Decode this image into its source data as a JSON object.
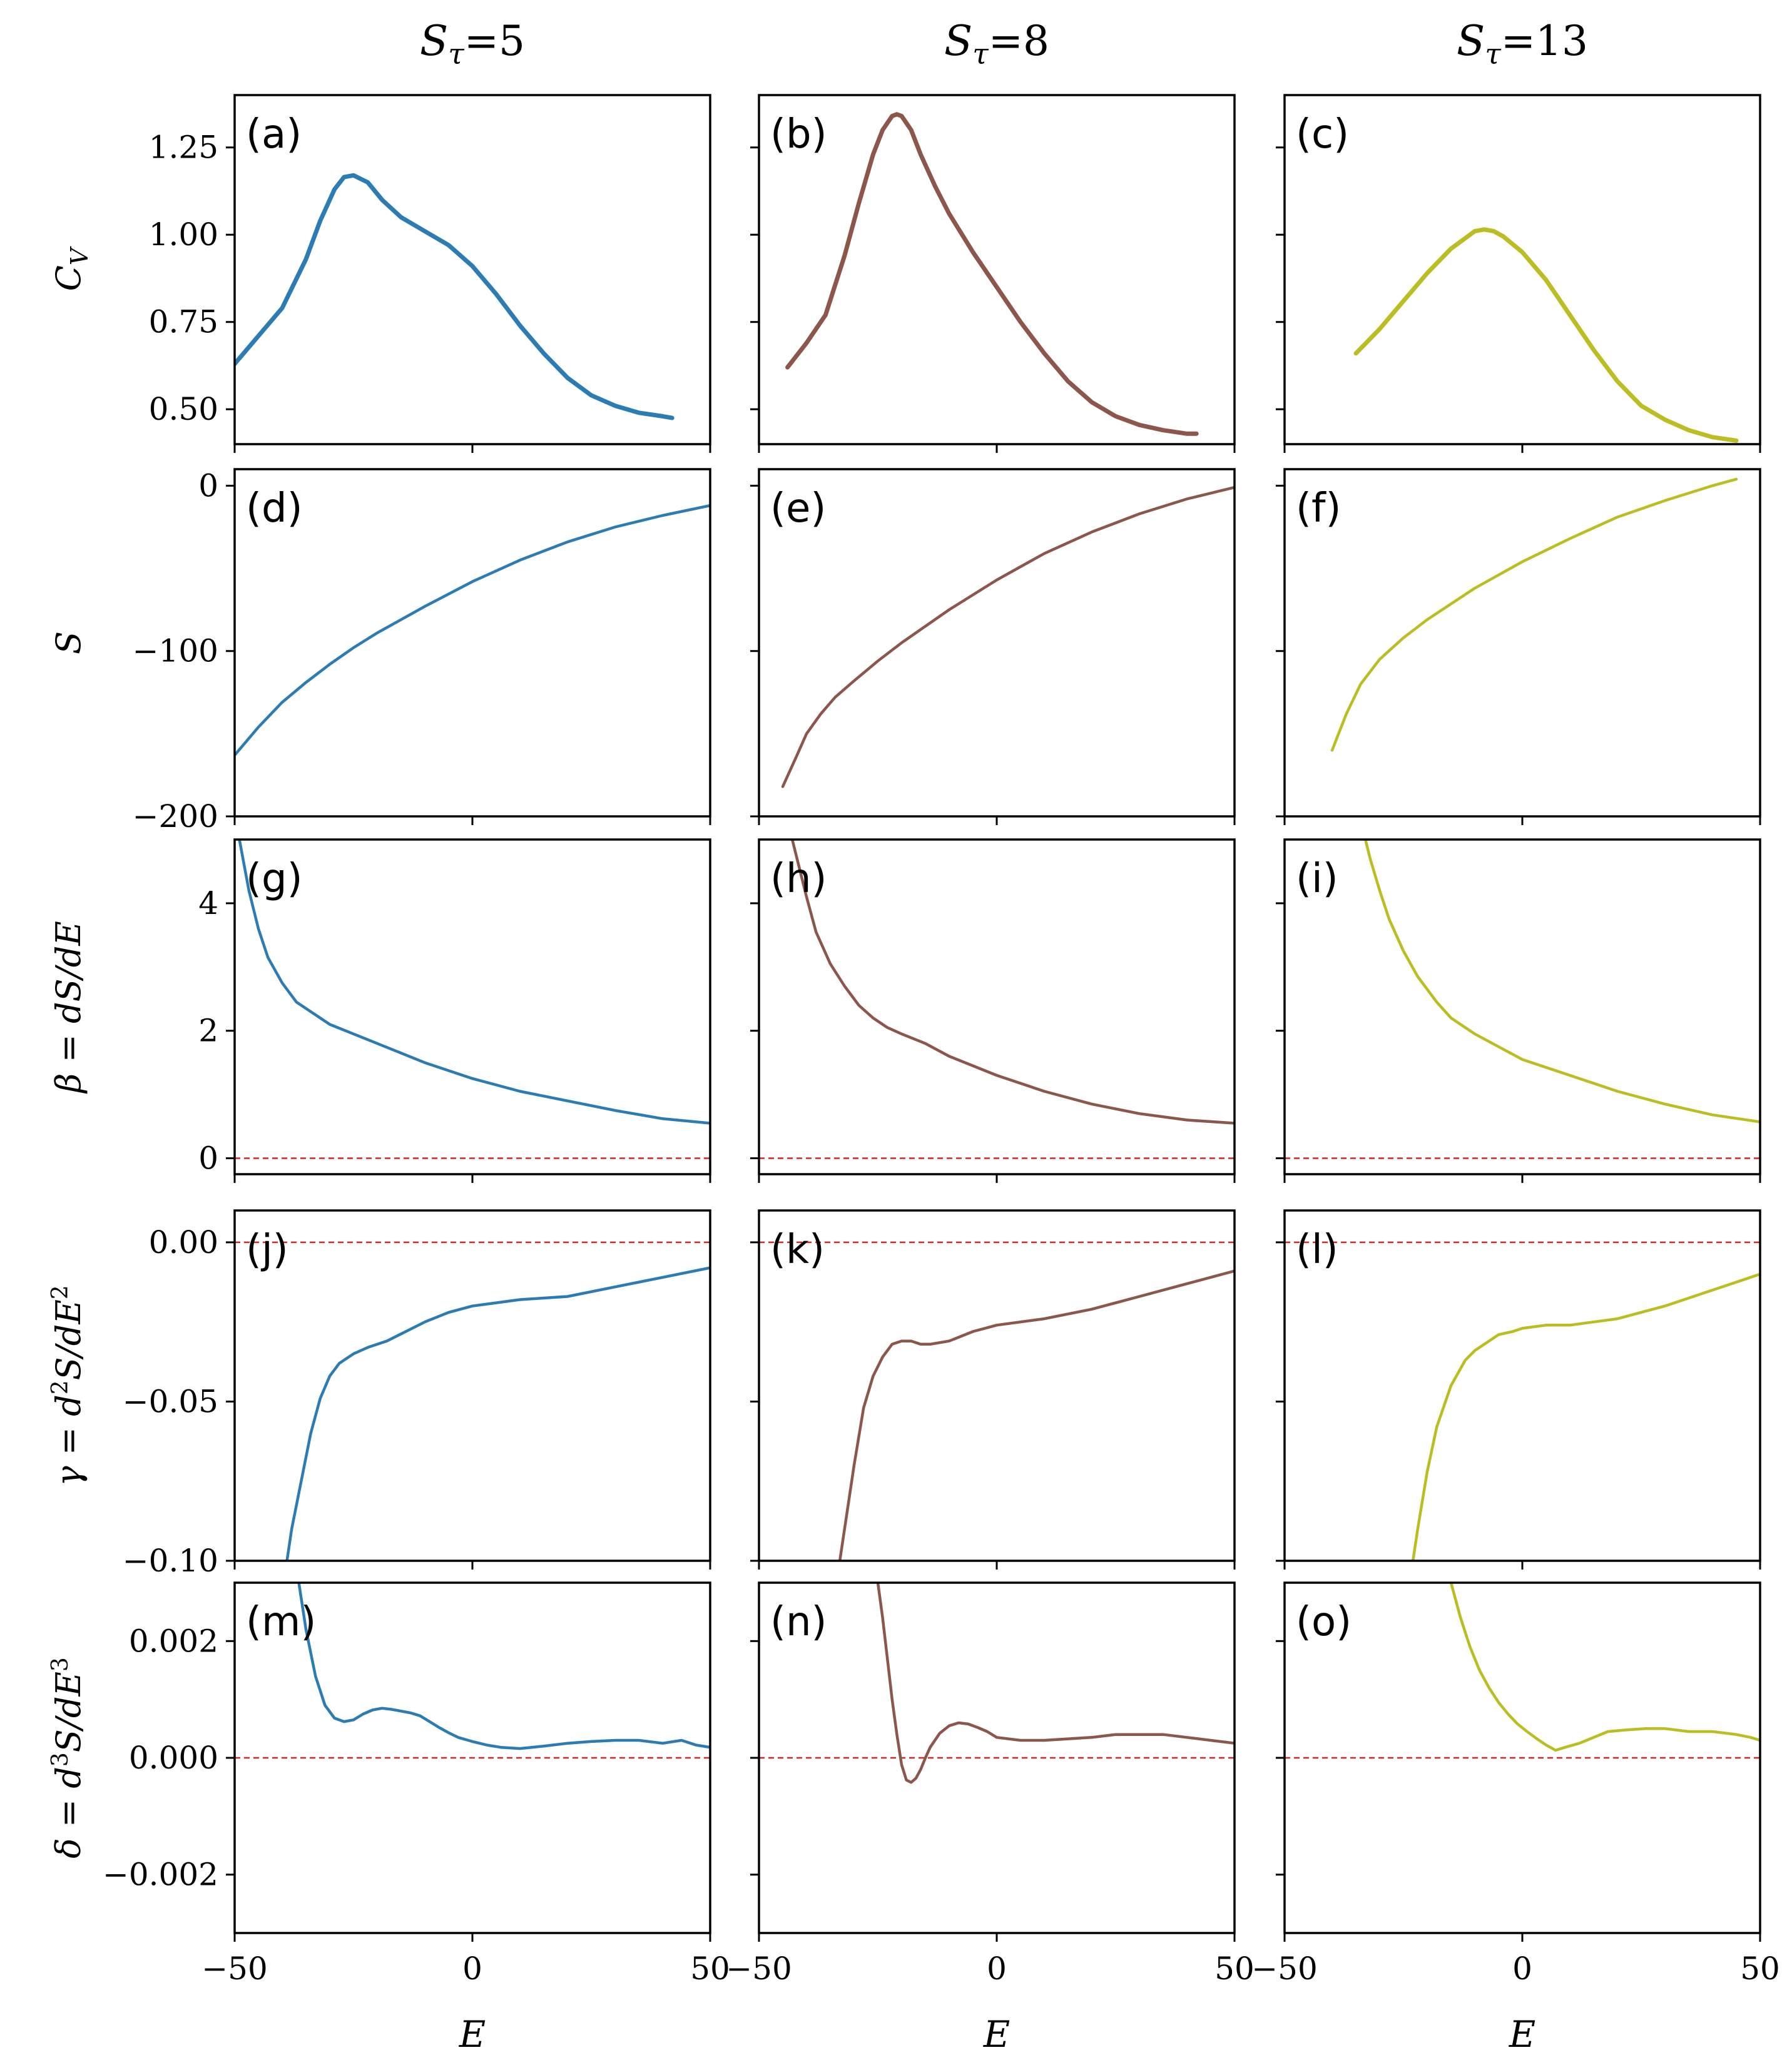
{
  "chart_data": {
    "type": "line",
    "layout": "5x3 grid of line plots",
    "colors": {
      "5": "#2b7bb4",
      "8": "#8c564b",
      "13": "#bcbd22",
      "zero_line": "#d62728"
    },
    "columns": [
      {
        "title": "S_τ=5",
        "title_main": "S",
        "title_sub": "τ",
        "title_rest": "=5",
        "color_key": "5"
      },
      {
        "title": "S_τ=8",
        "title_main": "S",
        "title_sub": "τ",
        "title_rest": "=8",
        "color_key": "8"
      },
      {
        "title": "S_τ=13",
        "title_main": "S",
        "title_sub": "τ",
        "title_rest": "=13",
        "color_key": "13"
      }
    ],
    "xaxis": {
      "label": "E",
      "xlim": [
        -50,
        50
      ],
      "ticks": [
        -50,
        0,
        50
      ],
      "tick_labels": [
        "−50",
        "0",
        "50"
      ]
    },
    "rows": [
      {
        "key": "cv",
        "ylabel": "C_V",
        "ylabel_main": "C",
        "ylabel_sub": "V",
        "ylim": [
          0.4,
          1.4
        ],
        "yticks": [
          0.5,
          0.75,
          1.0,
          1.25
        ],
        "ytick_labels": [
          "0.50",
          "0.75",
          "1.00",
          "1.25"
        ],
        "zero_line": false,
        "panels": [
          {
            "letter": "(a)",
            "x": [
              -50,
              -45,
              -40,
              -35,
              -32,
              -29,
              -27,
              -25,
              -22,
              -19,
              -15,
              -10,
              -5,
              0,
              5,
              10,
              15,
              20,
              25,
              30,
              35,
              40,
              42
            ],
            "y": [
              0.63,
              0.71,
              0.79,
              0.93,
              1.04,
              1.13,
              1.165,
              1.17,
              1.15,
              1.1,
              1.05,
              1.01,
              0.97,
              0.91,
              0.83,
              0.74,
              0.66,
              0.59,
              0.54,
              0.51,
              0.49,
              0.48,
              0.475
            ]
          },
          {
            "letter": "(b)",
            "x": [
              -44,
              -40,
              -36,
              -32,
              -29,
              -26,
              -24,
              -22,
              -21,
              -20,
              -18,
              -16,
              -13,
              -10,
              -5,
              0,
              5,
              10,
              15,
              20,
              25,
              30,
              35,
              40,
              42
            ],
            "y": [
              0.62,
              0.69,
              0.77,
              0.94,
              1.09,
              1.23,
              1.3,
              1.34,
              1.345,
              1.34,
              1.3,
              1.23,
              1.14,
              1.06,
              0.95,
              0.85,
              0.75,
              0.66,
              0.58,
              0.52,
              0.48,
              0.455,
              0.44,
              0.43,
              0.43
            ]
          },
          {
            "letter": "(c)",
            "x": [
              -35,
              -30,
              -25,
              -20,
              -15,
              -12,
              -10,
              -8,
              -6,
              -4,
              0,
              5,
              10,
              15,
              20,
              25,
              30,
              35,
              40,
              45
            ],
            "y": [
              0.66,
              0.73,
              0.81,
              0.89,
              0.96,
              0.99,
              1.01,
              1.015,
              1.01,
              0.995,
              0.95,
              0.87,
              0.77,
              0.67,
              0.58,
              0.51,
              0.47,
              0.44,
              0.42,
              0.41
            ]
          }
        ]
      },
      {
        "key": "s",
        "ylabel": "S",
        "ylim": [
          -200,
          10
        ],
        "yticks": [
          -200,
          -100,
          0
        ],
        "ytick_labels": [
          "−200",
          "−100",
          "0"
        ],
        "zero_line": false,
        "panels": [
          {
            "letter": "(d)",
            "x": [
              -50,
              -45,
              -40,
              -35,
              -30,
              -25,
              -20,
              -10,
              0,
              10,
              20,
              30,
              40,
              50
            ],
            "y": [
              -163,
              -146,
              -131,
              -119,
              -108,
              -98,
              -89,
              -73,
              -58,
              -45,
              -34,
              -25,
              -18,
              -12
            ]
          },
          {
            "letter": "(e)",
            "x": [
              -45,
              -42,
              -40,
              -37,
              -34,
              -30,
              -25,
              -20,
              -10,
              0,
              10,
              20,
              30,
              40,
              50
            ],
            "y": [
              -182,
              -163,
              -150,
              -138,
              -128,
              -118,
              -106,
              -95,
              -75,
              -57,
              -41,
              -28,
              -17,
              -8,
              -1
            ]
          },
          {
            "letter": "(f)",
            "x": [
              -40,
              -37,
              -34,
              -30,
              -25,
              -20,
              -10,
              0,
              10,
              20,
              30,
              40,
              45
            ],
            "y": [
              -160,
              -138,
              -120,
              -105,
              -92,
              -81,
              -62,
              -46,
              -32,
              -19,
              -9,
              0,
              4
            ]
          }
        ]
      },
      {
        "key": "beta",
        "ylabel": "β = dS/dE",
        "ylim": [
          -0.25,
          5.0
        ],
        "yticks": [
          0,
          2,
          4
        ],
        "ytick_labels": [
          "0",
          "2",
          "4"
        ],
        "zero_line": true,
        "panels": [
          {
            "letter": "(g)",
            "x": [
              -49,
              -47,
              -45,
              -43,
              -40,
              -37,
              -33,
              -30,
              -25,
              -20,
              -10,
              0,
              10,
              20,
              30,
              40,
              50
            ],
            "y": [
              5.0,
              4.2,
              3.6,
              3.15,
              2.75,
              2.45,
              2.25,
              2.1,
              1.95,
              1.8,
              1.5,
              1.25,
              1.05,
              0.9,
              0.75,
              0.62,
              0.55
            ]
          },
          {
            "letter": "(h)",
            "x": [
              -43,
              -42,
              -40,
              -38,
              -35,
              -32,
              -29,
              -26,
              -23,
              -20,
              -15,
              -10,
              0,
              10,
              20,
              30,
              40,
              50
            ],
            "y": [
              5.0,
              4.7,
              4.1,
              3.55,
              3.05,
              2.7,
              2.4,
              2.2,
              2.05,
              1.95,
              1.8,
              1.6,
              1.3,
              1.05,
              0.85,
              0.7,
              0.6,
              0.55
            ]
          },
          {
            "letter": "(i)",
            "x": [
              -33,
              -32,
              -30,
              -28,
              -25,
              -22,
              -18,
              -15,
              -10,
              -5,
              0,
              10,
              20,
              30,
              40,
              50
            ],
            "y": [
              5.0,
              4.7,
              4.2,
              3.75,
              3.25,
              2.85,
              2.45,
              2.2,
              1.95,
              1.75,
              1.55,
              1.3,
              1.05,
              0.85,
              0.68,
              0.57
            ]
          }
        ]
      },
      {
        "key": "gamma",
        "ylabel": "γ = d²S/dE²",
        "ylabel_main": "γ = d",
        "ylabel_sup": "2",
        "ylabel_rest": "S/dE",
        "ylabel_sup2": "2",
        "ylim": [
          -0.1,
          0.01
        ],
        "yticks": [
          -0.1,
          -0.05,
          0.0
        ],
        "ytick_labels": [
          "−0.10",
          "−0.05",
          "0.00"
        ],
        "zero_line": true,
        "panels": [
          {
            "letter": "(j)",
            "x": [
              -39,
              -38,
              -36,
              -34,
              -32,
              -30,
              -28,
              -25,
              -22,
              -18,
              -14,
              -10,
              -5,
              0,
              5,
              10,
              20,
              30,
              40,
              50
            ],
            "y": [
              -0.1,
              -0.09,
              -0.075,
              -0.06,
              -0.049,
              -0.042,
              -0.038,
              -0.035,
              -0.033,
              -0.031,
              -0.028,
              -0.025,
              -0.022,
              -0.02,
              -0.019,
              -0.018,
              -0.017,
              -0.014,
              -0.011,
              -0.008
            ]
          },
          {
            "letter": "(k)",
            "x": [
              -33,
              -32,
              -30,
              -28,
              -26,
              -24,
              -22,
              -20,
              -18,
              -16,
              -14,
              -10,
              -5,
              0,
              10,
              20,
              30,
              40,
              50
            ],
            "y": [
              -0.1,
              -0.09,
              -0.07,
              -0.052,
              -0.042,
              -0.036,
              -0.032,
              -0.031,
              -0.031,
              -0.032,
              -0.032,
              -0.031,
              -0.028,
              -0.026,
              -0.024,
              -0.021,
              -0.017,
              -0.013,
              -0.009
            ]
          },
          {
            "letter": "(l)",
            "x": [
              -23,
              -22,
              -20,
              -18,
              -15,
              -12,
              -10,
              -7,
              -5,
              -2,
              0,
              5,
              10,
              15,
              20,
              30,
              40,
              50
            ],
            "y": [
              -0.1,
              -0.09,
              -0.072,
              -0.058,
              -0.045,
              -0.037,
              -0.034,
              -0.031,
              -0.029,
              -0.028,
              -0.027,
              -0.026,
              -0.026,
              -0.025,
              -0.024,
              -0.02,
              -0.015,
              -0.01
            ]
          }
        ]
      },
      {
        "key": "delta",
        "ylabel": "δ = d³S/dE³",
        "ylabel_main": "δ = d",
        "ylabel_sup": "3",
        "ylabel_rest": "S/dE",
        "ylabel_sup2": "3",
        "ylim": [
          -0.003,
          0.003
        ],
        "yticks": [
          -0.002,
          0.0,
          0.002
        ],
        "ytick_labels": [
          "−0.002",
          "0.000",
          "0.002"
        ],
        "zero_line": true,
        "panels": [
          {
            "letter": "(m)",
            "x": [
              -36.5,
              -35,
              -33,
              -31,
              -29,
              -27,
              -25,
              -23,
              -21,
              -19,
              -17,
              -15,
              -13,
              -11,
              -9,
              -7,
              -5,
              -3,
              0,
              3,
              6,
              10,
              15,
              20,
              25,
              30,
              35,
              40,
              44,
              47,
              50
            ],
            "y": [
              0.003,
              0.0022,
              0.0014,
              0.0009,
              0.00068,
              0.00062,
              0.00065,
              0.00075,
              0.00082,
              0.00085,
              0.00083,
              0.0008,
              0.00077,
              0.00072,
              0.00062,
              0.00052,
              0.00043,
              0.00035,
              0.00028,
              0.00022,
              0.00018,
              0.00016,
              0.0002,
              0.00025,
              0.00028,
              0.0003,
              0.0003,
              0.00025,
              0.0003,
              0.00022,
              0.00018
            ]
          },
          {
            "letter": "(n)",
            "x": [
              -25,
              -24,
              -23,
              -22,
              -21,
              -20,
              -19,
              -18,
              -17,
              -16,
              -15,
              -14,
              -12,
              -10,
              -8,
              -6,
              -4,
              -2,
              0,
              5,
              10,
              20,
              25,
              30,
              35,
              40,
              45,
              50
            ],
            "y": [
              0.003,
              0.0024,
              0.0017,
              0.001,
              0.0004,
              -0.00012,
              -0.00038,
              -0.00042,
              -0.00035,
              -0.0002,
              0.0,
              0.00018,
              0.00042,
              0.00055,
              0.0006,
              0.00058,
              0.00052,
              0.00045,
              0.00035,
              0.0003,
              0.0003,
              0.00035,
              0.0004,
              0.0004,
              0.0004,
              0.00035,
              0.0003,
              0.00025
            ]
          },
          {
            "letter": "(o)",
            "x": [
              -15,
              -13,
              -11,
              -9,
              -7,
              -5,
              -3,
              -1,
              1,
              3,
              5,
              7,
              9,
              12,
              15,
              18,
              22,
              26,
              30,
              35,
              40,
              45,
              48,
              50
            ],
            "y": [
              0.003,
              0.0024,
              0.0019,
              0.0015,
              0.0012,
              0.00095,
              0.00075,
              0.00058,
              0.00045,
              0.00033,
              0.00022,
              0.00013,
              0.00018,
              0.00025,
              0.00035,
              0.00045,
              0.00048,
              0.0005,
              0.0005,
              0.00045,
              0.00045,
              0.0004,
              0.00035,
              0.0003
            ]
          }
        ]
      }
    ]
  }
}
